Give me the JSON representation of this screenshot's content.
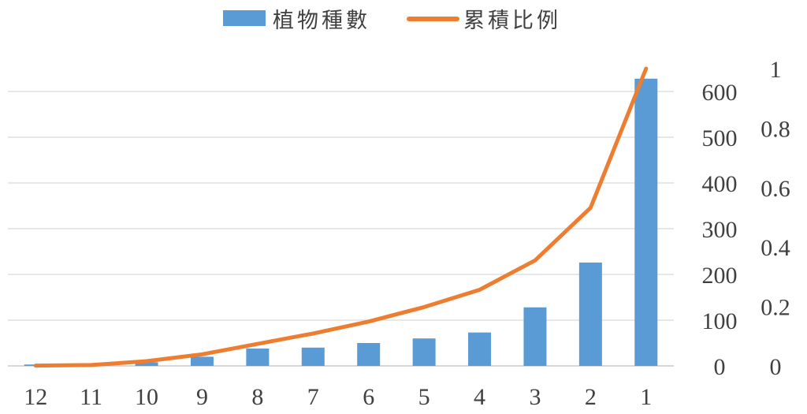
{
  "chart_data": {
    "type": "bar",
    "categories": [
      "12",
      "11",
      "10",
      "9",
      "8",
      "7",
      "6",
      "5",
      "4",
      "3",
      "2",
      "1"
    ],
    "series": [
      {
        "name": "植物種數",
        "type": "bar",
        "axis": "left",
        "color": "#5B9BD5",
        "values": [
          3,
          4,
          8,
          20,
          38,
          40,
          50,
          60,
          73,
          128,
          226,
          628
        ]
      },
      {
        "name": "累積比例",
        "type": "line",
        "axis": "right",
        "color": "#ED7D31",
        "values": [
          0.001,
          0.003,
          0.016,
          0.039,
          0.074,
          0.109,
          0.149,
          0.198,
          0.256,
          0.355,
          0.532,
          1.0
        ]
      }
    ],
    "y_left": {
      "range": [
        0,
        600
      ],
      "ticks": [
        "0",
        "100",
        "200",
        "300",
        "400",
        "500",
        "600"
      ]
    },
    "y_right": {
      "range": [
        0,
        1
      ],
      "ticks": [
        "0",
        "0.2",
        "0.4",
        "0.6",
        "0.8",
        "1"
      ]
    },
    "grid": true,
    "legend_position": "top"
  }
}
